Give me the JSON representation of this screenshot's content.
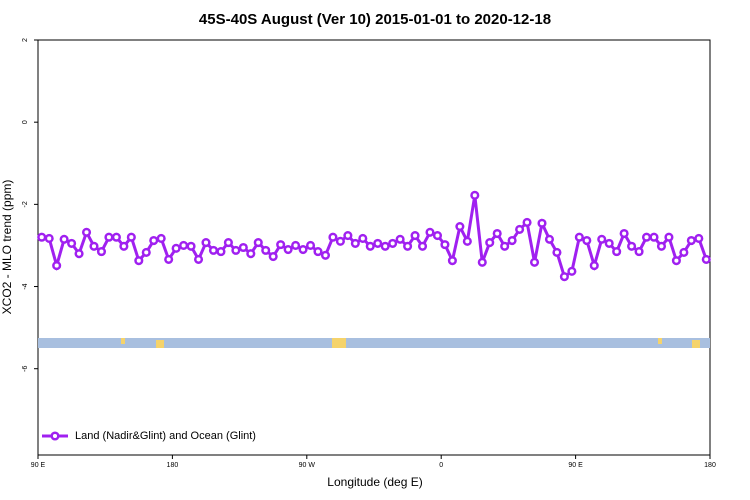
{
  "chart_data": {
    "type": "line",
    "title": "45S-40S August (Ver 10)   2015-01-01 to 2020-12-18",
    "xlabel": "Longitude (deg E)",
    "ylabel": "XCO2 - MLO trend (ppm)",
    "xlim": [
      90,
      540
    ],
    "xticks": [
      {
        "value": 90,
        "label": "90 E"
      },
      180,
      {
        "value": 270,
        "label": "90 W"
      },
      {
        "value": 360,
        "label": "0"
      },
      {
        "value": 450,
        "label": "90 E"
      },
      {
        "value": 540,
        "label": "180"
      }
    ],
    "ylim": [
      -8.1,
      2
    ],
    "yticks": [
      2,
      0,
      -2,
      -4,
      -6
    ],
    "legend": "bottomleft",
    "x": [
      92.5,
      97.5,
      102.5,
      107.5,
      112.5,
      117.5,
      122.5,
      127.5,
      132.5,
      137.5,
      142.5,
      147.5,
      152.5,
      157.5,
      162.5,
      167.5,
      172.5,
      177.5,
      182.5,
      187.5,
      192.5,
      197.5,
      202.5,
      207.5,
      212.5,
      217.5,
      222.5,
      227.5,
      232.5,
      237.5,
      242.5,
      247.5,
      252.5,
      257.5,
      262.5,
      267.5,
      272.5,
      277.5,
      282.5,
      287.5,
      292.5,
      297.5,
      302.5,
      307.5,
      312.5,
      317.5,
      322.5,
      327.5,
      332.5,
      337.5,
      342.5,
      347.5,
      352.5,
      357.5,
      362.5,
      367.5,
      372.5,
      377.5,
      382.5,
      387.5,
      392.5,
      397.5,
      402.5,
      407.5,
      412.5,
      417.5,
      422.5,
      427.5,
      432.5,
      437.5,
      442.5,
      447.5,
      452.5,
      457.5,
      462.5,
      467.5,
      472.5,
      477.5,
      482.5,
      487.5,
      492.5,
      497.5,
      502.5,
      507.5,
      512.5,
      517.5,
      522.5,
      527.5,
      532.5,
      537.5
    ],
    "series": [
      {
        "name": "Land (Nadir&Glint) and Ocean (Glint)",
        "color": "#a020f0",
        "values": [
          -2.8,
          -2.83,
          -3.49,
          -2.85,
          -2.95,
          -3.2,
          -2.68,
          -3.02,
          -3.15,
          -2.8,
          -2.8,
          -3.02,
          -2.8,
          -3.37,
          -3.17,
          -2.88,
          -2.83,
          -3.34,
          -3.07,
          -3.0,
          -3.02,
          -3.34,
          -2.93,
          -3.12,
          -3.15,
          -2.93,
          -3.12,
          -3.05,
          -3.2,
          -2.93,
          -3.12,
          -3.27,
          -2.98,
          -3.1,
          -3.0,
          -3.1,
          -3.0,
          -3.15,
          -3.24,
          -2.8,
          -2.9,
          -2.76,
          -2.95,
          -2.83,
          -3.02,
          -2.95,
          -3.02,
          -2.95,
          -2.85,
          -3.02,
          -2.76,
          -3.02,
          -2.68,
          -2.76,
          -2.98,
          -3.37,
          -2.54,
          -2.9,
          -1.78,
          -3.41,
          -2.93,
          -2.71,
          -3.02,
          -2.88,
          -2.61,
          -2.44,
          -3.41,
          -2.46,
          -2.85,
          -3.17,
          -3.76,
          -3.63,
          -2.8,
          -2.88,
          -3.49,
          -2.85,
          -2.95,
          -3.15,
          -2.71,
          -3.02,
          -3.15,
          -2.8,
          -2.8,
          -3.02,
          -2.8,
          -3.37,
          -3.17,
          -2.88,
          -2.83,
          -3.34
        ]
      }
    ]
  }
}
